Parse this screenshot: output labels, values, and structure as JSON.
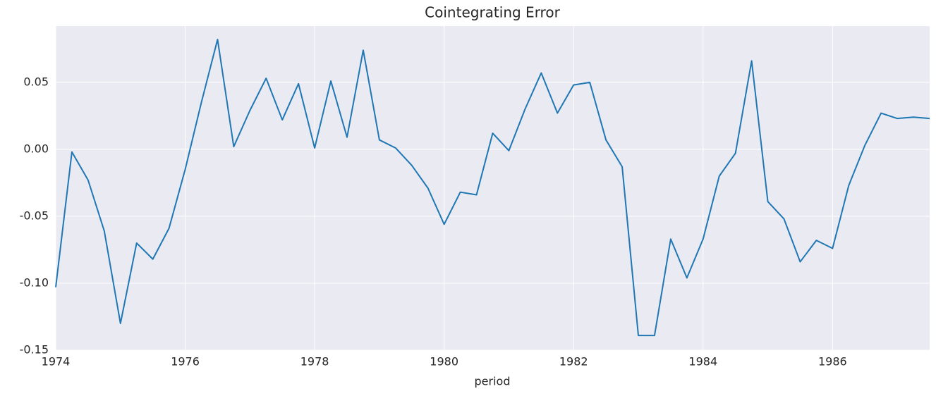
{
  "chart_data": {
    "type": "line",
    "title": "Cointegrating Error",
    "x_label": "period",
    "x": [
      1974,
      1974.25,
      1974.5,
      1974.75,
      1975,
      1975.25,
      1975.5,
      1975.75,
      1976,
      1976.25,
      1976.5,
      1976.75,
      1977,
      1977.25,
      1977.5,
      1977.75,
      1978,
      1978.25,
      1978.5,
      1978.75,
      1979,
      1979.25,
      1979.5,
      1979.75,
      1980,
      1980.25,
      1980.5,
      1980.75,
      1981,
      1981.25,
      1981.5,
      1981.75,
      1982,
      1982.25,
      1982.5,
      1982.75,
      1983,
      1983.25,
      1983.5,
      1983.75,
      1984,
      1984.25,
      1984.5,
      1984.75,
      1985,
      1985.25,
      1985.5,
      1985.75,
      1986,
      1986.25,
      1986.5,
      1986.75,
      1987,
      1987.25,
      1987.5
    ],
    "series": [
      {
        "color": "#1f77b4",
        "values": [
          -0.103,
          -0.002,
          -0.023,
          -0.061,
          -0.13,
          -0.07,
          -0.082,
          -0.059,
          -0.015,
          0.035,
          0.082,
          0.002,
          0.029,
          0.053,
          0.022,
          0.049,
          0.001,
          0.051,
          0.009,
          0.074,
          0.007,
          0.001,
          -0.012,
          -0.029,
          -0.056,
          -0.032,
          -0.034,
          0.012,
          -0.001,
          0.03,
          0.057,
          0.027,
          0.048,
          0.05,
          0.007,
          -0.013,
          -0.139,
          -0.139,
          -0.067,
          -0.096,
          -0.067,
          -0.02,
          -0.003,
          0.066,
          -0.039,
          -0.052,
          -0.084,
          -0.068,
          -0.074,
          -0.027,
          0.003,
          0.027,
          0.023,
          0.024,
          0.023
        ]
      }
    ],
    "xlim": [
      1974,
      1987.5
    ],
    "ylim": [
      -0.15,
      0.092
    ],
    "xticks": [
      1974,
      1976,
      1978,
      1980,
      1982,
      1984,
      1986
    ],
    "yticks": [
      {
        "value": -0.15,
        "label": "-0.15"
      },
      {
        "value": -0.1,
        "label": "-0.10"
      },
      {
        "value": -0.05,
        "label": "-0.05"
      },
      {
        "value": 0,
        "label": "0.00"
      },
      {
        "value": 0.05,
        "label": "0.05"
      }
    ],
    "grid": true,
    "background": "#eaeaf2"
  }
}
